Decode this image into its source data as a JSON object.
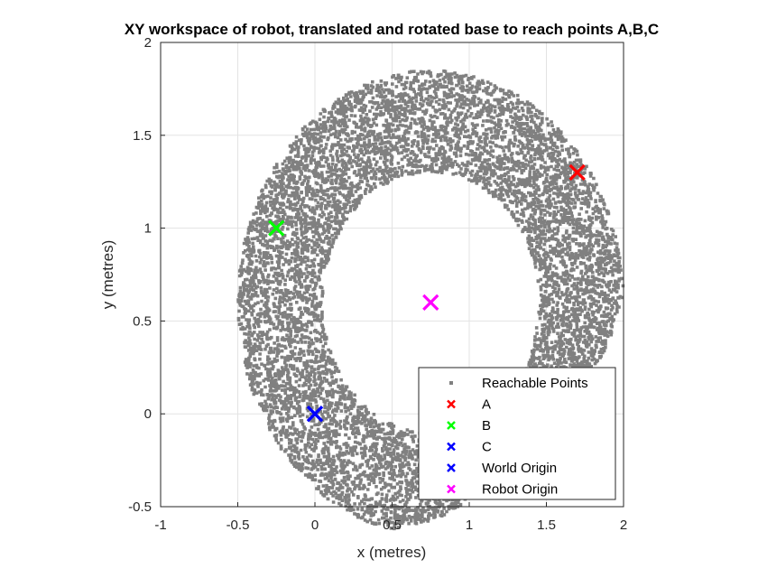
{
  "chart_data": {
    "type": "scatter",
    "title": "XY workspace of robot, translated and rotated base to reach points A,B,C",
    "xlabel": "x (metres)",
    "ylabel": "y (metres)",
    "xlim": [
      -1,
      2
    ],
    "ylim": [
      -0.5,
      2
    ],
    "xticks": [
      -1,
      -0.5,
      0,
      0.5,
      1,
      1.5,
      2
    ],
    "yticks": [
      -0.5,
      0,
      0.5,
      1,
      1.5,
      2
    ],
    "xtick_labels": [
      "-1",
      "-0.5",
      "0",
      "0.5",
      "1",
      "1.5",
      "2"
    ],
    "ytick_labels": [
      "-0.5",
      "0",
      "0.5",
      "1",
      "1.5",
      "2"
    ],
    "grid": true,
    "legend_position": "bottom-right",
    "workspace_region": {
      "description": "dense cloud of reachable points forming a horseshoe shaped annulus around the robot origin, open towards the lower right",
      "center": [
        0.75,
        0.6
      ],
      "inner_radius": 0.7,
      "outer_radius": 1.25,
      "arc_start_deg": -38,
      "arc_end_deg": 298,
      "approx_point_count": 9000
    },
    "series": [
      {
        "name": "Reachable Points",
        "marker": "square",
        "color": "#808080",
        "points": "workspace_region"
      },
      {
        "name": "A",
        "marker": "x",
        "color": "#ff0000",
        "points": [
          [
            1.7,
            1.3
          ]
        ]
      },
      {
        "name": "B",
        "marker": "x",
        "color": "#00ff00",
        "points": [
          [
            -0.25,
            1.0
          ]
        ]
      },
      {
        "name": "C",
        "marker": "x",
        "color": "#0000ff",
        "points": [
          [
            0.0,
            0.0
          ]
        ]
      },
      {
        "name": "World Origin",
        "marker": "x",
        "color": "#0000ff",
        "points": [
          [
            0.0,
            0.0
          ]
        ]
      },
      {
        "name": "Robot Origin",
        "marker": "x",
        "color": "#ff00ff",
        "points": [
          [
            0.75,
            0.6
          ]
        ]
      }
    ]
  }
}
